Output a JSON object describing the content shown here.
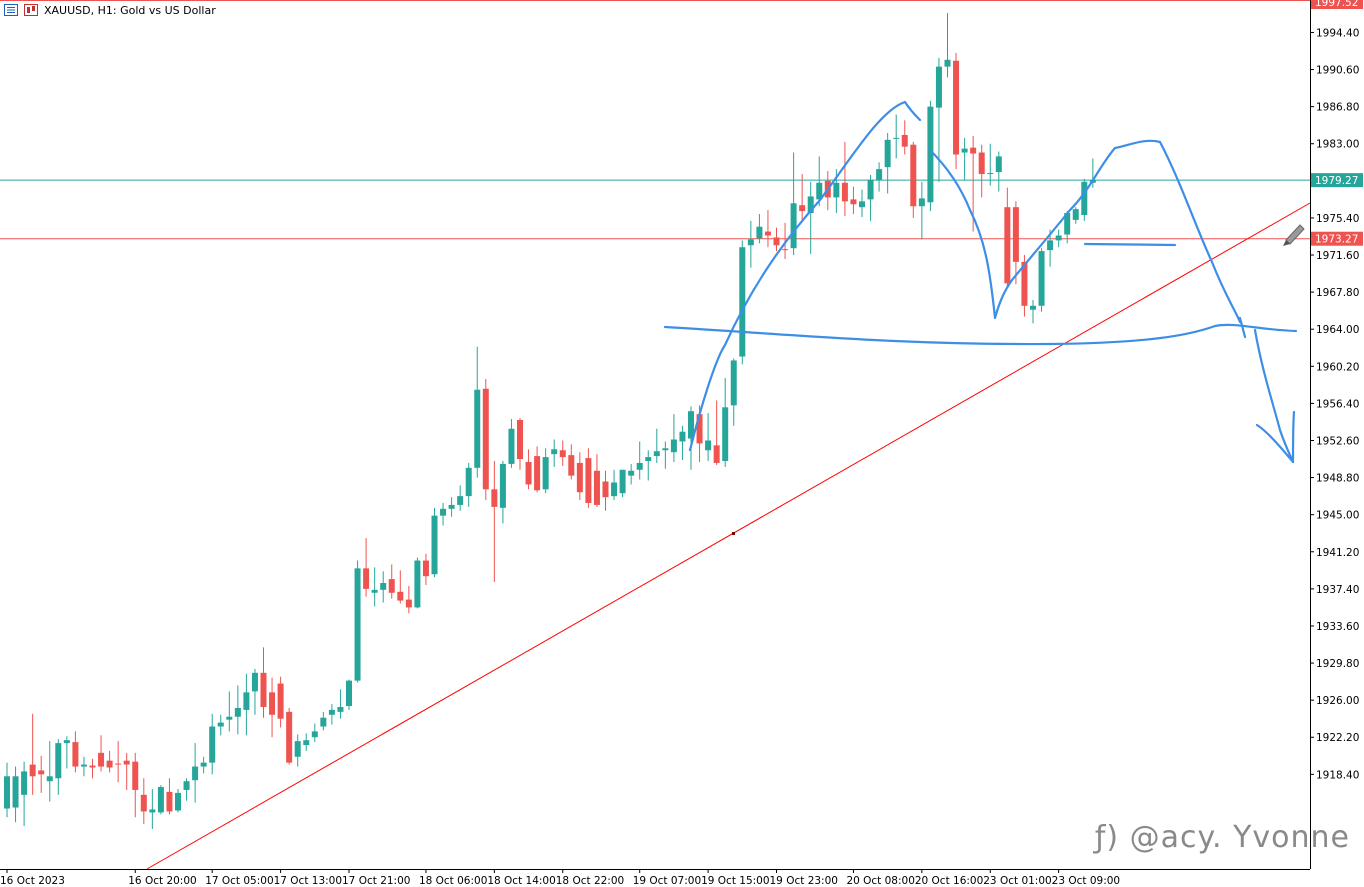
{
  "header": {
    "title": "XAUUSD, H1:  Gold vs US Dollar",
    "icons": [
      "chart-list-icon",
      "candles-icon"
    ]
  },
  "watermark": "ƒ) @acy. Yvonne",
  "colors": {
    "bull": "#26a69a",
    "bear": "#ef5350",
    "level_green": "#26a69a",
    "level_red": "#ef5350",
    "trendline": "#ff0000",
    "drawing": "#3d8ee6",
    "axis_text": "#000000"
  },
  "chart_data": {
    "type": "candlestick",
    "symbol": "XAUUSD",
    "timeframe": "H1",
    "ylim": [
      1912.8,
      1997.52
    ],
    "y_ticks": [
      1994.4,
      1990.6,
      1986.8,
      1983.0,
      1975.4,
      1971.6,
      1967.8,
      1964.0,
      1960.2,
      1956.4,
      1952.6,
      1948.8,
      1945.0,
      1941.2,
      1937.4,
      1933.6,
      1929.8,
      1926.0,
      1922.2,
      1918.4
    ],
    "y_tick_labels": [
      "1994.40",
      "1990.60",
      "1986.80",
      "1983.00",
      "1975.40",
      "1971.60",
      "1967.80",
      "1964.00",
      "1960.20",
      "1956.40",
      "1952.60",
      "1948.80",
      "1945.00",
      "1941.20",
      "1937.40",
      "1933.60",
      "1929.80",
      "1926.00",
      "1922.20",
      "1918.40"
    ],
    "x_tick_labels": [
      "16 Oct 2023",
      "16 Oct 20:00",
      "17 Oct 05:00",
      "17 Oct 13:00",
      "17 Oct 21:00",
      "18 Oct 06:00",
      "18 Oct 14:00",
      "18 Oct 22:00",
      "19 Oct 07:00",
      "19 Oct 15:00",
      "19 Oct 23:00",
      "20 Oct 08:00",
      "20 Oct 16:00",
      "23 Oct 01:00",
      "23 Oct 09:00"
    ],
    "x_tick_candle_index": [
      0,
      15,
      24,
      32,
      40,
      49,
      57,
      65,
      74,
      82,
      90,
      99,
      107,
      115,
      123
    ],
    "price_labels": [
      {
        "text": "1997.52",
        "value": 1997.52,
        "color": "#ef5350"
      },
      {
        "text": "1979.27",
        "value": 1979.27,
        "color": "#26a69a"
      },
      {
        "text": "1973.27",
        "value": 1973.27,
        "color": "#ef5350"
      }
    ],
    "horizontal_levels": [
      {
        "value": 1979.27,
        "color": "#26a69a"
      },
      {
        "value": 1973.27,
        "color": "#ef5350"
      }
    ],
    "candles": [
      {
        "o": 1914.9,
        "h": 1919.6,
        "l": 1914.0,
        "c": 1918.2
      },
      {
        "o": 1915.0,
        "h": 1919.2,
        "l": 1913.5,
        "c": 1918.2
      },
      {
        "o": 1916.3,
        "h": 1919.7,
        "l": 1913.1,
        "c": 1918.7
      },
      {
        "o": 1919.4,
        "h": 1924.6,
        "l": 1916.3,
        "c": 1918.2
      },
      {
        "o": 1918.8,
        "h": 1920.3,
        "l": 1916.5,
        "c": 1918.4
      },
      {
        "o": 1917.7,
        "h": 1921.8,
        "l": 1915.6,
        "c": 1918.2
      },
      {
        "o": 1918.0,
        "h": 1922.0,
        "l": 1916.3,
        "c": 1921.6
      },
      {
        "o": 1921.6,
        "h": 1922.3,
        "l": 1919.0,
        "c": 1921.9
      },
      {
        "o": 1921.7,
        "h": 1922.8,
        "l": 1918.6,
        "c": 1919.2
      },
      {
        "o": 1919.2,
        "h": 1920.2,
        "l": 1918.2,
        "c": 1919.4
      },
      {
        "o": 1919.3,
        "h": 1920.0,
        "l": 1918.0,
        "c": 1919.1
      },
      {
        "o": 1920.6,
        "h": 1922.4,
        "l": 1918.7,
        "c": 1919.2
      },
      {
        "o": 1919.8,
        "h": 1920.8,
        "l": 1918.6,
        "c": 1919.1
      },
      {
        "o": 1919.5,
        "h": 1921.8,
        "l": 1917.6,
        "c": 1919.4
      },
      {
        "o": 1919.8,
        "h": 1920.6,
        "l": 1916.8,
        "c": 1919.4
      },
      {
        "o": 1919.7,
        "h": 1920.6,
        "l": 1914.0,
        "c": 1916.8
      },
      {
        "o": 1916.3,
        "h": 1918.0,
        "l": 1913.3,
        "c": 1914.6
      },
      {
        "o": 1914.5,
        "h": 1916.9,
        "l": 1912.8,
        "c": 1914.8
      },
      {
        "o": 1914.5,
        "h": 1917.3,
        "l": 1914.3,
        "c": 1917.1
      },
      {
        "o": 1916.6,
        "h": 1918.0,
        "l": 1914.3,
        "c": 1914.6
      },
      {
        "o": 1914.7,
        "h": 1916.9,
        "l": 1914.5,
        "c": 1916.5
      },
      {
        "o": 1916.8,
        "h": 1918.0,
        "l": 1915.7,
        "c": 1917.7
      },
      {
        "o": 1917.8,
        "h": 1921.6,
        "l": 1915.5,
        "c": 1919.2
      },
      {
        "o": 1919.2,
        "h": 1920.2,
        "l": 1918.5,
        "c": 1919.6
      },
      {
        "o": 1919.6,
        "h": 1924.6,
        "l": 1918.4,
        "c": 1923.3
      },
      {
        "o": 1923.3,
        "h": 1924.5,
        "l": 1922.4,
        "c": 1923.7
      },
      {
        "o": 1924.0,
        "h": 1926.9,
        "l": 1922.8,
        "c": 1924.3
      },
      {
        "o": 1924.3,
        "h": 1927.5,
        "l": 1922.5,
        "c": 1925.2
      },
      {
        "o": 1925.0,
        "h": 1928.7,
        "l": 1922.4,
        "c": 1926.8
      },
      {
        "o": 1926.9,
        "h": 1929.2,
        "l": 1924.5,
        "c": 1928.8
      },
      {
        "o": 1928.8,
        "h": 1931.4,
        "l": 1924.2,
        "c": 1925.3
      },
      {
        "o": 1926.8,
        "h": 1928.3,
        "l": 1922.2,
        "c": 1924.5
      },
      {
        "o": 1927.7,
        "h": 1928.4,
        "l": 1923.2,
        "c": 1924.1
      },
      {
        "o": 1924.8,
        "h": 1925.2,
        "l": 1919.4,
        "c": 1919.6
      },
      {
        "o": 1920.2,
        "h": 1922.5,
        "l": 1919.2,
        "c": 1921.8
      },
      {
        "o": 1921.4,
        "h": 1922.6,
        "l": 1920.8,
        "c": 1921.9
      },
      {
        "o": 1922.2,
        "h": 1923.6,
        "l": 1921.7,
        "c": 1922.8
      },
      {
        "o": 1923.3,
        "h": 1924.8,
        "l": 1922.9,
        "c": 1924.2
      },
      {
        "o": 1924.5,
        "h": 1925.6,
        "l": 1923.5,
        "c": 1925.0
      },
      {
        "o": 1924.8,
        "h": 1927.1,
        "l": 1924.1,
        "c": 1925.3
      },
      {
        "o": 1925.4,
        "h": 1928.1,
        "l": 1925.0,
        "c": 1928.0
      },
      {
        "o": 1928.0,
        "h": 1940.3,
        "l": 1927.8,
        "c": 1939.5
      },
      {
        "o": 1939.5,
        "h": 1942.6,
        "l": 1936.6,
        "c": 1937.4
      },
      {
        "o": 1937.0,
        "h": 1939.6,
        "l": 1935.6,
        "c": 1937.3
      },
      {
        "o": 1937.3,
        "h": 1939.2,
        "l": 1936.0,
        "c": 1938.0
      },
      {
        "o": 1938.4,
        "h": 1939.9,
        "l": 1936.4,
        "c": 1937.0
      },
      {
        "o": 1937.1,
        "h": 1939.3,
        "l": 1935.9,
        "c": 1936.2
      },
      {
        "o": 1936.3,
        "h": 1937.7,
        "l": 1934.9,
        "c": 1935.5
      },
      {
        "o": 1935.5,
        "h": 1940.6,
        "l": 1935.4,
        "c": 1940.3
      },
      {
        "o": 1940.3,
        "h": 1941.0,
        "l": 1937.8,
        "c": 1938.7
      },
      {
        "o": 1938.9,
        "h": 1945.7,
        "l": 1938.6,
        "c": 1944.9
      },
      {
        "o": 1944.9,
        "h": 1946.2,
        "l": 1943.9,
        "c": 1945.6
      },
      {
        "o": 1945.6,
        "h": 1946.8,
        "l": 1944.8,
        "c": 1946.0
      },
      {
        "o": 1946.0,
        "h": 1948.0,
        "l": 1945.4,
        "c": 1946.9
      },
      {
        "o": 1946.9,
        "h": 1950.3,
        "l": 1945.8,
        "c": 1949.8
      },
      {
        "o": 1949.8,
        "h": 1962.2,
        "l": 1948.8,
        "c": 1957.8
      },
      {
        "o": 1957.9,
        "h": 1958.9,
        "l": 1946.5,
        "c": 1947.6
      },
      {
        "o": 1947.6,
        "h": 1950.5,
        "l": 1938.1,
        "c": 1945.8
      },
      {
        "o": 1945.7,
        "h": 1950.5,
        "l": 1944.1,
        "c": 1950.2
      },
      {
        "o": 1950.2,
        "h": 1954.8,
        "l": 1949.8,
        "c": 1953.8
      },
      {
        "o": 1954.7,
        "h": 1954.9,
        "l": 1949.6,
        "c": 1950.7
      },
      {
        "o": 1950.4,
        "h": 1951.7,
        "l": 1947.6,
        "c": 1948.1
      },
      {
        "o": 1951.0,
        "h": 1952.0,
        "l": 1947.3,
        "c": 1947.5
      },
      {
        "o": 1947.6,
        "h": 1951.8,
        "l": 1947.2,
        "c": 1950.9
      },
      {
        "o": 1951.2,
        "h": 1952.7,
        "l": 1949.9,
        "c": 1951.7
      },
      {
        "o": 1951.6,
        "h": 1952.6,
        "l": 1950.0,
        "c": 1950.9
      },
      {
        "o": 1951.1,
        "h": 1952.2,
        "l": 1948.6,
        "c": 1949.0
      },
      {
        "o": 1950.3,
        "h": 1951.4,
        "l": 1946.5,
        "c": 1947.3
      },
      {
        "o": 1950.8,
        "h": 1951.8,
        "l": 1945.7,
        "c": 1946.2
      },
      {
        "o": 1949.5,
        "h": 1951.2,
        "l": 1945.8,
        "c": 1946.0
      },
      {
        "o": 1948.4,
        "h": 1949.5,
        "l": 1945.4,
        "c": 1946.8
      },
      {
        "o": 1946.9,
        "h": 1949.6,
        "l": 1946.5,
        "c": 1948.3
      },
      {
        "o": 1947.2,
        "h": 1949.6,
        "l": 1946.8,
        "c": 1949.6
      },
      {
        "o": 1949.0,
        "h": 1950.2,
        "l": 1948.1,
        "c": 1949.5
      },
      {
        "o": 1949.6,
        "h": 1952.5,
        "l": 1948.6,
        "c": 1950.3
      },
      {
        "o": 1950.5,
        "h": 1951.6,
        "l": 1948.5,
        "c": 1950.9
      },
      {
        "o": 1951.0,
        "h": 1953.8,
        "l": 1950.3,
        "c": 1951.5
      },
      {
        "o": 1951.6,
        "h": 1952.5,
        "l": 1949.7,
        "c": 1951.8
      },
      {
        "o": 1951.4,
        "h": 1955.3,
        "l": 1950.4,
        "c": 1952.7
      },
      {
        "o": 1952.5,
        "h": 1954.1,
        "l": 1950.6,
        "c": 1953.5
      },
      {
        "o": 1952.8,
        "h": 1956.1,
        "l": 1949.6,
        "c": 1955.6
      },
      {
        "o": 1955.3,
        "h": 1956.2,
        "l": 1950.4,
        "c": 1952.3
      },
      {
        "o": 1951.6,
        "h": 1955.4,
        "l": 1950.5,
        "c": 1952.6
      },
      {
        "o": 1952.1,
        "h": 1956.7,
        "l": 1950.1,
        "c": 1950.3
      },
      {
        "o": 1950.5,
        "h": 1959.0,
        "l": 1949.9,
        "c": 1956.0
      },
      {
        "o": 1956.2,
        "h": 1961.0,
        "l": 1954.1,
        "c": 1960.8
      },
      {
        "o": 1961.2,
        "h": 1973.1,
        "l": 1960.4,
        "c": 1972.4
      },
      {
        "o": 1972.6,
        "h": 1975.1,
        "l": 1970.3,
        "c": 1973.2
      },
      {
        "o": 1973.3,
        "h": 1975.8,
        "l": 1972.8,
        "c": 1974.5
      },
      {
        "o": 1974.0,
        "h": 1976.2,
        "l": 1972.4,
        "c": 1973.6
      },
      {
        "o": 1973.4,
        "h": 1974.4,
        "l": 1972.0,
        "c": 1972.6
      },
      {
        "o": 1972.2,
        "h": 1974.9,
        "l": 1971.2,
        "c": 1972.1
      },
      {
        "o": 1972.3,
        "h": 1982.1,
        "l": 1971.6,
        "c": 1976.9
      },
      {
        "o": 1976.7,
        "h": 1979.9,
        "l": 1975.2,
        "c": 1976.1
      },
      {
        "o": 1975.9,
        "h": 1979.1,
        "l": 1971.7,
        "c": 1977.6
      },
      {
        "o": 1977.3,
        "h": 1981.7,
        "l": 1976.6,
        "c": 1979.0
      },
      {
        "o": 1979.2,
        "h": 1980.2,
        "l": 1976.2,
        "c": 1977.5
      },
      {
        "o": 1977.5,
        "h": 1980.4,
        "l": 1975.9,
        "c": 1979.0
      },
      {
        "o": 1979.0,
        "h": 1983.2,
        "l": 1975.6,
        "c": 1977.1
      },
      {
        "o": 1977.3,
        "h": 1978.6,
        "l": 1975.8,
        "c": 1976.8
      },
      {
        "o": 1976.5,
        "h": 1978.3,
        "l": 1975.5,
        "c": 1977.1
      },
      {
        "o": 1977.3,
        "h": 1979.8,
        "l": 1975.1,
        "c": 1979.3
      },
      {
        "o": 1979.3,
        "h": 1981.1,
        "l": 1978.1,
        "c": 1980.4
      },
      {
        "o": 1980.6,
        "h": 1984.1,
        "l": 1977.9,
        "c": 1983.4
      },
      {
        "o": 1983.5,
        "h": 1986.0,
        "l": 1981.5,
        "c": 1983.6
      },
      {
        "o": 1983.9,
        "h": 1985.4,
        "l": 1981.9,
        "c": 1982.7
      },
      {
        "o": 1982.9,
        "h": 1983.2,
        "l": 1975.4,
        "c": 1976.6
      },
      {
        "o": 1976.6,
        "h": 1979.1,
        "l": 1973.2,
        "c": 1977.4
      },
      {
        "o": 1977.0,
        "h": 1987.4,
        "l": 1976.1,
        "c": 1986.8
      },
      {
        "o": 1986.7,
        "h": 1991.8,
        "l": 1979.1,
        "c": 1990.9
      },
      {
        "o": 1990.9,
        "h": 1996.4,
        "l": 1989.8,
        "c": 1991.6
      },
      {
        "o": 1991.5,
        "h": 1992.3,
        "l": 1980.4,
        "c": 1981.9
      },
      {
        "o": 1982.1,
        "h": 1983.6,
        "l": 1979.3,
        "c": 1982.5
      },
      {
        "o": 1982.6,
        "h": 1983.8,
        "l": 1974.0,
        "c": 1982.0
      },
      {
        "o": 1982.1,
        "h": 1982.9,
        "l": 1977.5,
        "c": 1979.9
      },
      {
        "o": 1979.9,
        "h": 1983.0,
        "l": 1978.7,
        "c": 1980.0
      },
      {
        "o": 1980.1,
        "h": 1982.2,
        "l": 1978.1,
        "c": 1981.7
      },
      {
        "o": 1976.5,
        "h": 1978.5,
        "l": 1968.2,
        "c": 1968.7
      },
      {
        "o": 1976.5,
        "h": 1977.1,
        "l": 1968.6,
        "c": 1970.9
      },
      {
        "o": 1970.9,
        "h": 1971.6,
        "l": 1965.3,
        "c": 1966.4
      },
      {
        "o": 1966.0,
        "h": 1967.0,
        "l": 1964.6,
        "c": 1966.4
      },
      {
        "o": 1966.4,
        "h": 1972.3,
        "l": 1965.8,
        "c": 1972.0
      },
      {
        "o": 1972.1,
        "h": 1974.2,
        "l": 1970.4,
        "c": 1973.1
      },
      {
        "o": 1973.1,
        "h": 1974.2,
        "l": 1972.4,
        "c": 1973.6
      },
      {
        "o": 1973.7,
        "h": 1976.1,
        "l": 1972.8,
        "c": 1975.9
      },
      {
        "o": 1975.2,
        "h": 1976.5,
        "l": 1974.8,
        "c": 1976.3
      },
      {
        "o": 1975.7,
        "h": 1979.4,
        "l": 1975.1,
        "c": 1979.1
      },
      {
        "o": 1979.0,
        "h": 1981.5,
        "l": 1978.5,
        "c": 1979.3
      }
    ]
  }
}
